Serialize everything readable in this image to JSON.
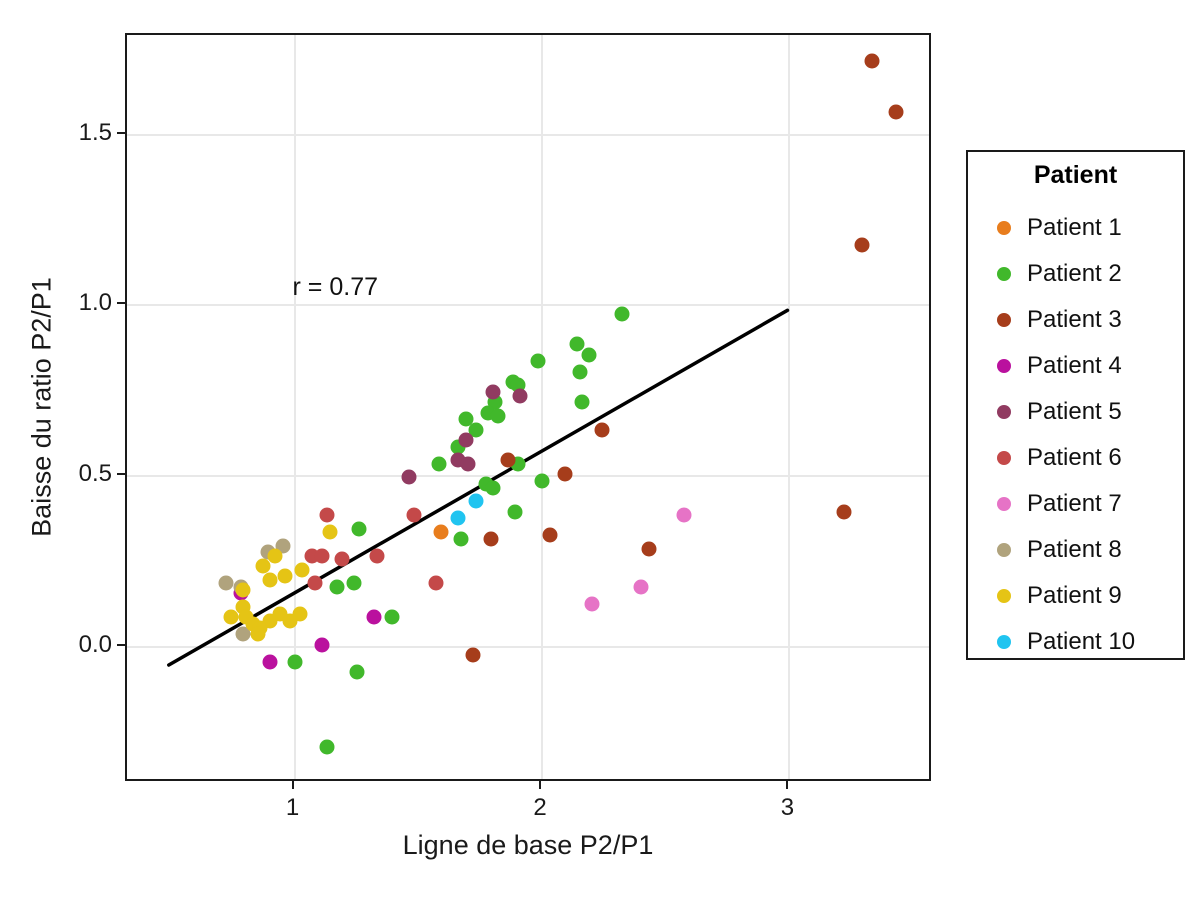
{
  "chart_data": {
    "type": "scatter",
    "xlabel": "Ligne de base P2/P1",
    "ylabel": "Baisse du ratio P2/P1",
    "xlim": [
      0.323,
      3.58
    ],
    "ylim": [
      -0.4,
      1.793
    ],
    "x_ticks": [
      1,
      2,
      3
    ],
    "y_ticks": [
      0.0,
      0.5,
      1.0,
      1.5
    ],
    "x_tick_labels": [
      "1",
      "2",
      "3"
    ],
    "y_tick_labels": [
      "0.0",
      "0.5",
      "1.0",
      "1.5"
    ],
    "grid": true,
    "legend_title": "Patient",
    "legend_position": "right",
    "annotation": {
      "text": "r = 0.77",
      "x": 1.0,
      "y": 1.045
    },
    "trendline": {
      "x1": 0.5,
      "y1": -0.06,
      "x2": 3.0,
      "y2": 0.98,
      "color": "#000000",
      "width": 3.5
    },
    "series": [
      {
        "name": "Patient 1",
        "color": "#E87D1D",
        "points": [
          [
            1.6,
            0.33
          ]
        ]
      },
      {
        "name": "Patient 2",
        "color": "#41B82B",
        "points": [
          [
            2.33,
            0.97
          ],
          [
            2.15,
            0.88
          ],
          [
            2.2,
            0.85
          ],
          [
            2.16,
            0.8
          ],
          [
            1.99,
            0.83
          ],
          [
            1.89,
            0.77
          ],
          [
            1.91,
            0.76
          ],
          [
            1.82,
            0.71
          ],
          [
            2.17,
            0.71
          ],
          [
            1.79,
            0.68
          ],
          [
            1.83,
            0.67
          ],
          [
            1.7,
            0.66
          ],
          [
            1.74,
            0.63
          ],
          [
            1.67,
            0.58
          ],
          [
            1.59,
            0.53
          ],
          [
            1.91,
            0.53
          ],
          [
            2.01,
            0.48
          ],
          [
            1.78,
            0.47
          ],
          [
            1.81,
            0.46
          ],
          [
            1.9,
            0.39
          ],
          [
            1.68,
            0.31
          ],
          [
            1.27,
            0.34
          ],
          [
            1.18,
            0.17
          ],
          [
            1.25,
            0.18
          ],
          [
            1.4,
            0.08
          ],
          [
            1.01,
            -0.05
          ],
          [
            1.26,
            -0.08
          ],
          [
            1.14,
            -0.3
          ]
        ]
      },
      {
        "name": "Patient 3",
        "color": "#A63D1B",
        "points": [
          [
            3.34,
            1.71
          ],
          [
            3.44,
            1.56
          ],
          [
            3.3,
            1.17
          ],
          [
            3.23,
            0.39
          ],
          [
            2.44,
            0.28
          ],
          [
            2.25,
            0.63
          ],
          [
            2.1,
            0.5
          ],
          [
            2.04,
            0.32
          ],
          [
            1.87,
            0.54
          ],
          [
            1.8,
            0.31
          ],
          [
            1.73,
            -0.03
          ]
        ]
      },
      {
        "name": "Patient 4",
        "color": "#BA119E",
        "points": [
          [
            0.79,
            0.15
          ],
          [
            0.91,
            -0.05
          ],
          [
            1.12,
            0.0
          ],
          [
            1.33,
            0.08
          ]
        ]
      },
      {
        "name": "Patient 5",
        "color": "#913B61",
        "points": [
          [
            1.81,
            0.74
          ],
          [
            1.92,
            0.73
          ],
          [
            1.7,
            0.6
          ],
          [
            1.67,
            0.54
          ],
          [
            1.71,
            0.53
          ],
          [
            1.47,
            0.49
          ]
        ]
      },
      {
        "name": "Patient 6",
        "color": "#C44949",
        "points": [
          [
            1.14,
            0.38
          ],
          [
            1.49,
            0.38
          ],
          [
            1.08,
            0.26
          ],
          [
            1.12,
            0.26
          ],
          [
            1.2,
            0.25
          ],
          [
            1.34,
            0.26
          ],
          [
            1.09,
            0.18
          ],
          [
            1.58,
            0.18
          ]
        ]
      },
      {
        "name": "Patient 7",
        "color": "#E673C6",
        "points": [
          [
            2.58,
            0.38
          ],
          [
            2.41,
            0.17
          ],
          [
            2.21,
            0.12
          ]
        ]
      },
      {
        "name": "Patient 8",
        "color": "#B0A37D",
        "points": [
          [
            0.96,
            0.29
          ],
          [
            0.9,
            0.27
          ],
          [
            0.73,
            0.18
          ],
          [
            0.79,
            0.17
          ],
          [
            0.8,
            0.03
          ]
        ]
      },
      {
        "name": "Patient 9",
        "color": "#E5C415",
        "points": [
          [
            1.15,
            0.33
          ],
          [
            0.93,
            0.26
          ],
          [
            0.88,
            0.23
          ],
          [
            1.04,
            0.22
          ],
          [
            0.97,
            0.2
          ],
          [
            0.91,
            0.19
          ],
          [
            0.8,
            0.16
          ],
          [
            0.8,
            0.11
          ],
          [
            0.95,
            0.09
          ],
          [
            1.03,
            0.09
          ],
          [
            0.81,
            0.08
          ],
          [
            0.75,
            0.08
          ],
          [
            0.99,
            0.07
          ],
          [
            0.91,
            0.07
          ],
          [
            0.84,
            0.06
          ],
          [
            0.87,
            0.05
          ],
          [
            0.86,
            0.03
          ]
        ]
      },
      {
        "name": "Patient 10",
        "color": "#20C4F0",
        "points": [
          [
            1.74,
            0.42
          ],
          [
            1.67,
            0.37
          ]
        ]
      }
    ]
  }
}
